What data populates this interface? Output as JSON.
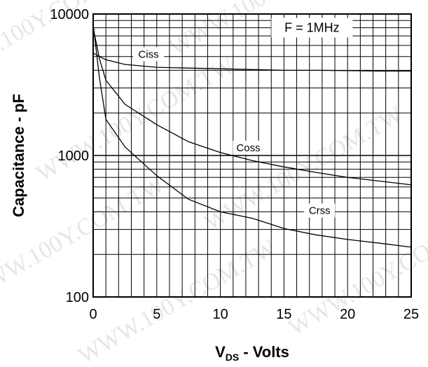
{
  "chart_data": {
    "type": "line",
    "xlabel": {
      "main": "V",
      "sub": "DS",
      "rest": " - Volts"
    },
    "ylabel": "Capacitance - pF",
    "xlim": [
      0,
      25
    ],
    "ylim": [
      100,
      10000
    ],
    "yscale": "log",
    "grid": true,
    "x_ticks": [
      "0",
      "5",
      "10",
      "15",
      "20",
      "25"
    ],
    "y_ticks": [
      "100",
      "1000",
      "10000"
    ],
    "annotation": "F = 1MHz",
    "series": [
      {
        "label": "Ciss",
        "x": [
          0,
          0.5,
          1,
          2.5,
          5,
          7.5,
          10,
          12.5,
          15,
          17.5,
          20,
          22.5,
          25
        ],
        "y": [
          5300,
          5000,
          4750,
          4400,
          4200,
          4150,
          4100,
          4050,
          4000,
          4000,
          3980,
          3950,
          3950
        ]
      },
      {
        "label": "Coss",
        "x": [
          0,
          0.5,
          1,
          2.5,
          5,
          7.5,
          10,
          12.5,
          15,
          17.5,
          20,
          22.5,
          25
        ],
        "y": [
          8000,
          4800,
          3400,
          2300,
          1650,
          1250,
          1050,
          920,
          830,
          760,
          700,
          660,
          620
        ]
      },
      {
        "label": "Crss",
        "x": [
          0,
          0.5,
          1,
          2.5,
          5,
          7.5,
          10,
          12.5,
          15,
          17.5,
          20,
          22.5,
          25
        ],
        "y": [
          8500,
          3500,
          1800,
          1150,
          720,
          490,
          400,
          360,
          305,
          275,
          255,
          240,
          225
        ]
      }
    ]
  },
  "watermark": "WWW.100Y.COM.TW",
  "colors": {
    "line": "#000000",
    "watermark": "#e6e6e6"
  }
}
